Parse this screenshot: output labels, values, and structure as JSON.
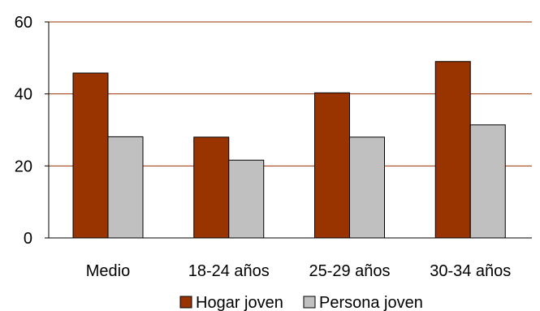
{
  "chart_data": {
    "type": "bar",
    "title": "",
    "xlabel": "",
    "ylabel": "",
    "ylim": [
      0,
      60
    ],
    "yticks": [
      0,
      20,
      40,
      60
    ],
    "grid": true,
    "legend_position": "bottom",
    "categories": [
      "Medio",
      "18-24 años",
      "25-29 años",
      "30-34 años"
    ],
    "series": [
      {
        "name": "Hogar joven",
        "color": "#993300",
        "values": [
          45.8,
          28,
          40.3,
          49
        ]
      },
      {
        "name": "Persona joven",
        "color": "#C0C0C0",
        "values": [
          28.1,
          21.6,
          28,
          31.4
        ]
      }
    ],
    "gridline_color": "#993300"
  }
}
